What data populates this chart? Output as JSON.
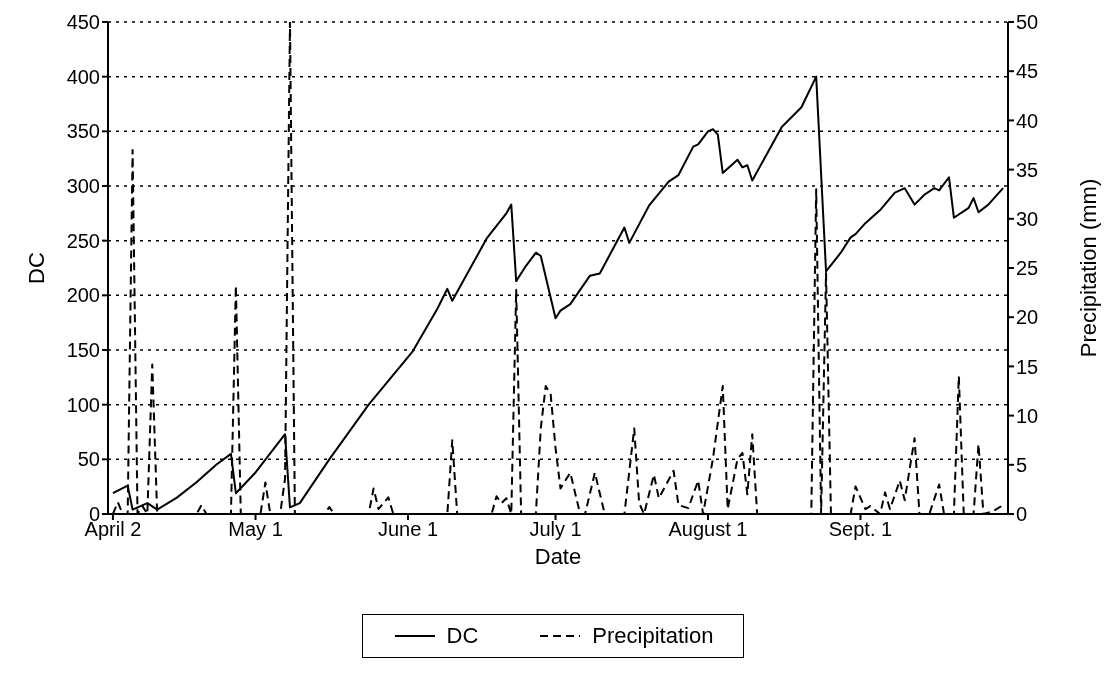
{
  "chart_data": {
    "type": "line",
    "xlabel": "Date",
    "ylabel": "DC",
    "y2label": "Precipitation (mm)",
    "xlim": [
      "--04-01",
      "--10-01"
    ],
    "xticks": [
      {
        "value": "--04-02",
        "label": "April 2"
      },
      {
        "value": "--05-01",
        "label": "May 1"
      },
      {
        "value": "--06-01",
        "label": "June 1"
      },
      {
        "value": "--07-01",
        "label": "July 1"
      },
      {
        "value": "--08-01",
        "label": "August 1"
      },
      {
        "value": "--09-01",
        "label": "Sept. 1"
      }
    ],
    "ylim": [
      0,
      450
    ],
    "yticks": [
      0,
      50,
      100,
      150,
      200,
      250,
      300,
      350,
      400,
      450
    ],
    "y2lim": [
      0,
      50
    ],
    "y2ticks": [
      0,
      5,
      10,
      15,
      20,
      25,
      30,
      35,
      40,
      45,
      50
    ],
    "grid": "y",
    "legend": "bottom",
    "marker": "none",
    "series": [
      {
        "name": "DC",
        "color": "#000000",
        "line_style": "solid",
        "x": [
          "--04-02",
          "--04-05",
          "--04-06",
          "--04-09",
          "--04-11",
          "--04-15",
          "--04-19",
          "--04-23",
          "--04-26",
          "--04-27",
          "--05-01",
          "--05-07",
          "--05-08",
          "--05-10",
          "--05-16",
          "--05-24",
          "--06-02",
          "--06-07",
          "--06-09",
          "--06-10",
          "--06-17",
          "--06-21",
          "--06-22",
          "--06-23",
          "--06-25",
          "--06-27",
          "--06-28",
          "--07-01",
          "--07-02",
          "--07-04",
          "--07-08",
          "--07-10",
          "--07-15",
          "--07-16",
          "--07-20",
          "--07-24",
          "--07-26",
          "--07-29",
          "--07-30",
          "--08-01",
          "--08-02",
          "--08-03",
          "--08-04",
          "--08-07",
          "--08-08",
          "--08-09",
          "--08-10",
          "--08-16",
          "--08-20",
          "--08-23",
          "--08-25",
          "--08-28",
          "--08-30",
          "--08-31",
          "--09-02",
          "--09-05",
          "--09-08",
          "--09-10",
          "--09-12",
          "--09-14",
          "--09-16",
          "--09-17",
          "--09-19",
          "--09-20",
          "--09-23",
          "--09-24",
          "--09-25",
          "--09-27",
          "--09-30"
        ],
        "values": [
          19,
          26,
          4,
          10,
          4,
          15,
          29,
          45,
          55,
          19,
          38,
          73,
          6,
          10,
          50,
          100,
          149,
          188,
          206,
          195,
          252,
          275,
          283,
          213,
          227,
          239,
          236,
          179,
          186,
          192,
          218,
          220,
          262,
          248,
          282,
          304,
          310,
          336,
          338,
          350,
          352,
          347,
          312,
          324,
          317,
          319,
          305,
          354,
          372,
          400,
          222,
          239,
          253,
          256,
          266,
          278,
          294,
          298,
          283,
          292,
          298,
          296,
          308,
          271,
          280,
          289,
          276,
          283,
          298
        ]
      },
      {
        "name": "Precipitation",
        "color": "#000000",
        "line_style": "dashed",
        "axis": "y2",
        "x": [
          "--04-02",
          "--04-03",
          "--04-04",
          "--04-05",
          "--04-06",
          "--04-07",
          "--04-08",
          "--04-09",
          "--04-10",
          "--04-11",
          "--04-19",
          "--04-20",
          "--04-21",
          "--04-26",
          "--04-27",
          "--04-28",
          "--05-02",
          "--05-03",
          "--05-04",
          "--05-06",
          "--05-07",
          "--05-08",
          "--05-09",
          "--05-15",
          "--05-16",
          "--05-17",
          "--05-24",
          "--05-25",
          "--05-26",
          "--05-28",
          "--05-29",
          "--06-09",
          "--06-10",
          "--06-11",
          "--06-18",
          "--06-19",
          "--06-20",
          "--06-21",
          "--06-22",
          "--06-23",
          "--06-24",
          "--06-27",
          "--06-28",
          "--06-29",
          "--06-30",
          "--07-01",
          "--07-02",
          "--07-03",
          "--07-04",
          "--07-06",
          "--07-07",
          "--07-09",
          "--07-11",
          "--07-15",
          "--07-17",
          "--07-18",
          "--07-19",
          "--07-21",
          "--07-22",
          "--07-25",
          "--07-26",
          "--07-28",
          "--07-30",
          "--07-31",
          "--08-02",
          "--08-04",
          "--08-05",
          "--08-07",
          "--08-08",
          "--08-09",
          "--08-10",
          "--08-11",
          "--08-22",
          "--08-23",
          "--08-24",
          "--08-25",
          "--08-26",
          "--08-30",
          "--08-31",
          "--09-02",
          "--09-03",
          "--09-05",
          "--09-06",
          "--09-07",
          "--09-09",
          "--09-10",
          "--09-12",
          "--09-13",
          "--09-15",
          "--09-17",
          "--09-18",
          "--09-20",
          "--09-21",
          "--09-22",
          "--09-24",
          "--09-25",
          "--09-26",
          "--09-28",
          "--09-30"
        ],
        "values": [
          0,
          1.2,
          0,
          0,
          37,
          0,
          0.8,
          0,
          15.2,
          0,
          0,
          0.9,
          0,
          0,
          23.2,
          0,
          0,
          3.2,
          0,
          0,
          3.6,
          50,
          0,
          0,
          0.7,
          0,
          0,
          2.6,
          0.5,
          1.7,
          0,
          0,
          7.5,
          0,
          0,
          1.8,
          1.1,
          1.6,
          0,
          22.8,
          0,
          0,
          8.7,
          13,
          12.2,
          6.7,
          2.6,
          3.4,
          4.2,
          0,
          0,
          4.2,
          0,
          0,
          8.7,
          1.1,
          0,
          4,
          1.6,
          4.4,
          0.9,
          0.6,
          3.4,
          0,
          5.6,
          13,
          0.5,
          5.6,
          6.2,
          2,
          8.1,
          0,
          0,
          33,
          0,
          24.5,
          0,
          0,
          2.8,
          0.5,
          0.8,
          0,
          2.2,
          0.5,
          3.4,
          1.4,
          7.7,
          0,
          0,
          3,
          0,
          0,
          14,
          0,
          0,
          7.1,
          0,
          0.3,
          0.9
        ]
      }
    ]
  }
}
